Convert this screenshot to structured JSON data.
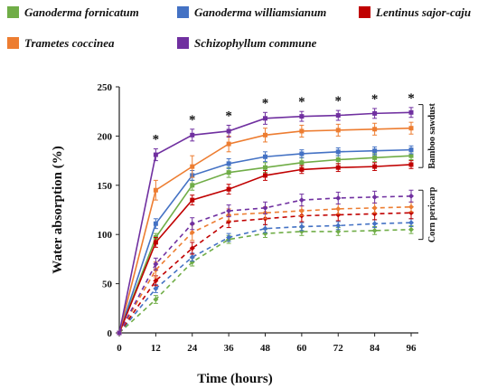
{
  "chart_data": {
    "type": "line",
    "xlabel": "Time (hours)",
    "ylabel": "Water absorption (%)",
    "x": [
      0,
      12,
      24,
      36,
      48,
      60,
      72,
      84,
      96
    ],
    "xticks": [
      "0",
      "12",
      "24",
      "36",
      "48",
      "60",
      "72",
      "84",
      "96"
    ],
    "ylim": [
      0,
      250
    ],
    "yticks": [
      "0",
      "50",
      "100",
      "150",
      "200",
      "250"
    ],
    "legend_position": "top",
    "significance_marker": "*",
    "significance_x": [
      12,
      24,
      36,
      48,
      60,
      72,
      84,
      96
    ],
    "brackets": [
      {
        "label": "Bamboo sawdust",
        "range": [
          168,
          232
        ]
      },
      {
        "label": "Corn pericarp",
        "range": [
          95,
          145
        ]
      }
    ],
    "legend": [
      {
        "name": "Ganoderma fornicatum",
        "color": "#70ad47"
      },
      {
        "name": "Ganoderma williamsianum",
        "color": "#4472c4"
      },
      {
        "name": "Lentinus sajor-caju",
        "color": "#c00000"
      },
      {
        "name": "Trametes coccinea",
        "color": "#ed7d31"
      },
      {
        "name": "Schizophyllum commune",
        "color": "#7030a0"
      }
    ],
    "series": [
      {
        "name": "Ganoderma fornicatum",
        "substrate": "Bamboo sawdust",
        "color": "#70ad47",
        "style": "solid",
        "values": [
          0,
          97,
          150,
          163,
          168,
          173,
          176,
          178,
          180
        ],
        "errors": [
          0,
          4,
          5,
          5,
          5,
          5,
          4,
          4,
          4
        ]
      },
      {
        "name": "Ganoderma williamsianum",
        "substrate": "Bamboo sawdust",
        "color": "#4472c4",
        "style": "solid",
        "values": [
          0,
          111,
          160,
          172,
          179,
          182,
          184,
          185,
          186
        ],
        "errors": [
          0,
          5,
          5,
          5,
          5,
          4,
          4,
          4,
          4
        ]
      },
      {
        "name": "Lentinus sajor-caju",
        "substrate": "Bamboo sawdust",
        "color": "#c00000",
        "style": "solid",
        "values": [
          0,
          92,
          135,
          146,
          160,
          166,
          168,
          169,
          171
        ],
        "errors": [
          0,
          5,
          5,
          5,
          5,
          4,
          4,
          4,
          4
        ]
      },
      {
        "name": "Trametes coccinea",
        "substrate": "Bamboo sawdust",
        "color": "#ed7d31",
        "style": "solid",
        "values": [
          0,
          145,
          169,
          192,
          201,
          205,
          206,
          207,
          208
        ],
        "errors": [
          0,
          10,
          11,
          8,
          7,
          6,
          6,
          6,
          6
        ]
      },
      {
        "name": "Schizophyllum commune",
        "substrate": "Bamboo sawdust",
        "color": "#7030a0",
        "style": "solid",
        "values": [
          0,
          181,
          201,
          205,
          218,
          220,
          221,
          223,
          224
        ],
        "errors": [
          0,
          6,
          6,
          6,
          6,
          5,
          5,
          5,
          5
        ]
      },
      {
        "name": "Ganoderma fornicatum",
        "substrate": "Corn pericarp",
        "color": "#70ad47",
        "style": "dashed",
        "values": [
          0,
          34,
          72,
          95,
          101,
          103,
          103,
          104,
          105
        ],
        "errors": [
          0,
          4,
          4,
          4,
          4,
          4,
          4,
          4,
          4
        ]
      },
      {
        "name": "Ganoderma williamsianum",
        "substrate": "Corn pericarp",
        "color": "#4472c4",
        "style": "dashed",
        "values": [
          0,
          45,
          77,
          97,
          106,
          108,
          109,
          111,
          112
        ],
        "errors": [
          0,
          4,
          4,
          4,
          4,
          4,
          4,
          4,
          4
        ]
      },
      {
        "name": "Lentinus sajor-caju",
        "substrate": "Corn pericarp",
        "color": "#c00000",
        "style": "dashed",
        "values": [
          0,
          53,
          86,
          113,
          116,
          119,
          120,
          121,
          122
        ],
        "errors": [
          0,
          5,
          6,
          6,
          6,
          6,
          6,
          6,
          6
        ]
      },
      {
        "name": "Trametes coccinea",
        "substrate": "Corn pericarp",
        "color": "#ed7d31",
        "style": "dashed",
        "values": [
          0,
          64,
          102,
          120,
          122,
          124,
          126,
          127,
          128
        ],
        "errors": [
          0,
          8,
          8,
          6,
          6,
          5,
          5,
          5,
          5
        ]
      },
      {
        "name": "Schizophyllum commune",
        "substrate": "Corn pericarp",
        "color": "#7030a0",
        "style": "dashed",
        "values": [
          0,
          70,
          111,
          124,
          127,
          135,
          137,
          138,
          139
        ],
        "errors": [
          0,
          6,
          6,
          6,
          6,
          6,
          6,
          6,
          6
        ]
      }
    ]
  }
}
